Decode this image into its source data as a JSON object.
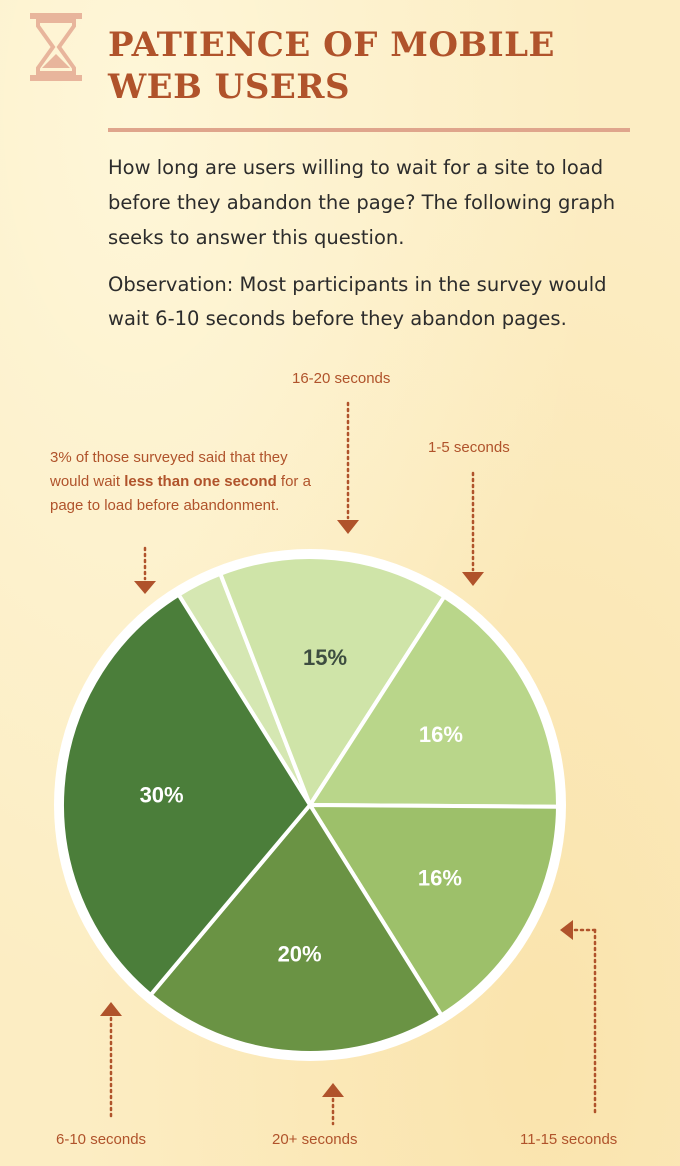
{
  "header": {
    "icon": "hourglass-icon",
    "title": "PATIENCE OF MOBILE WEB USERS"
  },
  "intro": "How long are users willing to wait for a site to load before they abandon the page? The following graph seeks to answer this question.",
  "observation": "Observation: Most participants in the survey would wait 6-10 seconds before they abandon pages.",
  "note": {
    "text_before": "3% of those surveyed said that they would wait ",
    "text_bold": "less than one second",
    "text_after": " for a page to load before abandonment."
  },
  "colors": {
    "accent": "#b0532b",
    "rule": "#dfa58c",
    "background": "#fcedc3",
    "pie_outline": "#ffffff"
  },
  "chart_data": {
    "type": "pie",
    "slices": [
      {
        "category": "less than one second",
        "value": 3,
        "label": "",
        "color": "#d5e7b2",
        "label_color": "#3a4a3a"
      },
      {
        "category": "16-20 seconds",
        "value": 15,
        "label": "15%",
        "color": "#cfe4a8",
        "label_color": "#3d4d40"
      },
      {
        "category": "1-5 seconds",
        "value": 16,
        "label": "16%",
        "color": "#b9d68a",
        "label_color": "#ffffff"
      },
      {
        "category": "11-15 seconds",
        "value": 16,
        "label": "16%",
        "color": "#9dc06a",
        "label_color": "#ffffff"
      },
      {
        "category": "20+ seconds",
        "value": 20,
        "label": "20%",
        "color": "#6a9344",
        "label_color": "#ffffff"
      },
      {
        "category": "6-10 seconds",
        "value": 30,
        "label": "30%",
        "color": "#4b7e3a",
        "label_color": "#ffffff"
      }
    ],
    "callouts": [
      "16-20 seconds",
      "1-5 seconds",
      "11-15 seconds",
      "20+ seconds",
      "6-10 seconds"
    ]
  }
}
